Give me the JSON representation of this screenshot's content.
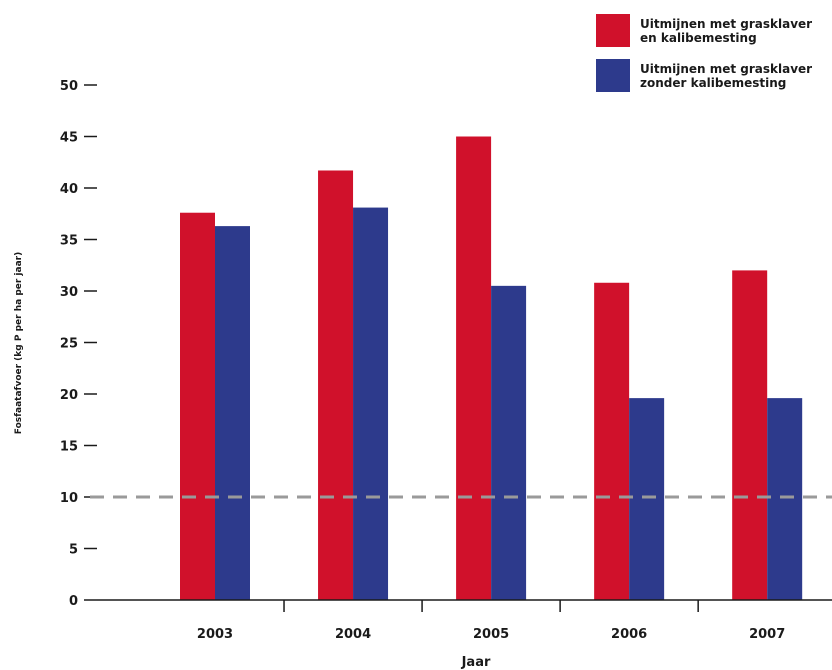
{
  "chart_data": {
    "type": "bar",
    "categories": [
      "2003",
      "2004",
      "2005",
      "2006",
      "2007"
    ],
    "series": [
      {
        "name": "Uitmijnen met grasklaver\nen kalibemesting",
        "color": "#d0112b",
        "values": [
          37.6,
          41.7,
          45.0,
          30.8,
          32.0
        ]
      },
      {
        "name": "Uitmijnen met grasklaver\nzonder kalibemesting",
        "color": "#2d3a8c",
        "values": [
          36.3,
          38.1,
          30.5,
          19.6,
          19.6
        ]
      }
    ],
    "title": "",
    "xlabel": "Jaar",
    "ylabel": "Fosfaatafvoer (kg P per ha per jaar)",
    "ylim": [
      0,
      50
    ],
    "yticks": [
      "0",
      "5",
      "10",
      "15",
      "20",
      "25",
      "30",
      "35",
      "40",
      "45",
      "50"
    ],
    "reference_line": {
      "y": 10,
      "style": "dashed",
      "color": "#9a9a9a"
    },
    "grid": false,
    "legend_position": "top-right"
  }
}
